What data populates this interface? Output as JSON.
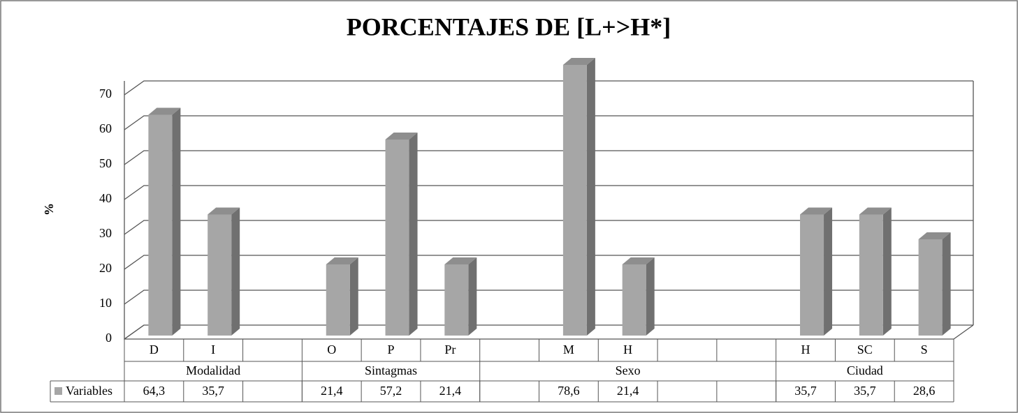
{
  "chart_data": {
    "type": "bar3d",
    "title": "PORCENTAJES DE [L+>H*]",
    "y_label": "%",
    "ylim": [
      0,
      70
    ],
    "yticks": [
      0,
      10,
      20,
      30,
      40,
      50,
      60,
      70
    ],
    "grid": true,
    "series": {
      "name": "Variables",
      "color": "#a6a6a6"
    },
    "groups": [
      {
        "name": "Modalidad",
        "categories": [
          "D",
          "I",
          null
        ],
        "values": [
          64.3,
          35.7,
          null
        ],
        "value_labels": [
          "64,3",
          "35,7",
          null
        ]
      },
      {
        "name": "Sintagmas",
        "categories": [
          "O",
          "P",
          "Pr"
        ],
        "values": [
          21.4,
          57.2,
          21.4
        ],
        "value_labels": [
          "21,4",
          "57,2",
          "21,4"
        ]
      },
      {
        "name": "Sexo",
        "categories": [
          null,
          "M",
          "H",
          null,
          null
        ],
        "values": [
          null,
          78.6,
          21.4,
          null,
          null
        ],
        "value_labels": [
          null,
          "78,6",
          "21,4",
          null,
          null
        ]
      },
      {
        "name": "Ciudad",
        "categories": [
          "H",
          "SC",
          "S"
        ],
        "values": [
          35.7,
          35.7,
          28.6
        ],
        "value_labels": [
          "35,7",
          "35,7",
          "28,6"
        ]
      }
    ]
  }
}
